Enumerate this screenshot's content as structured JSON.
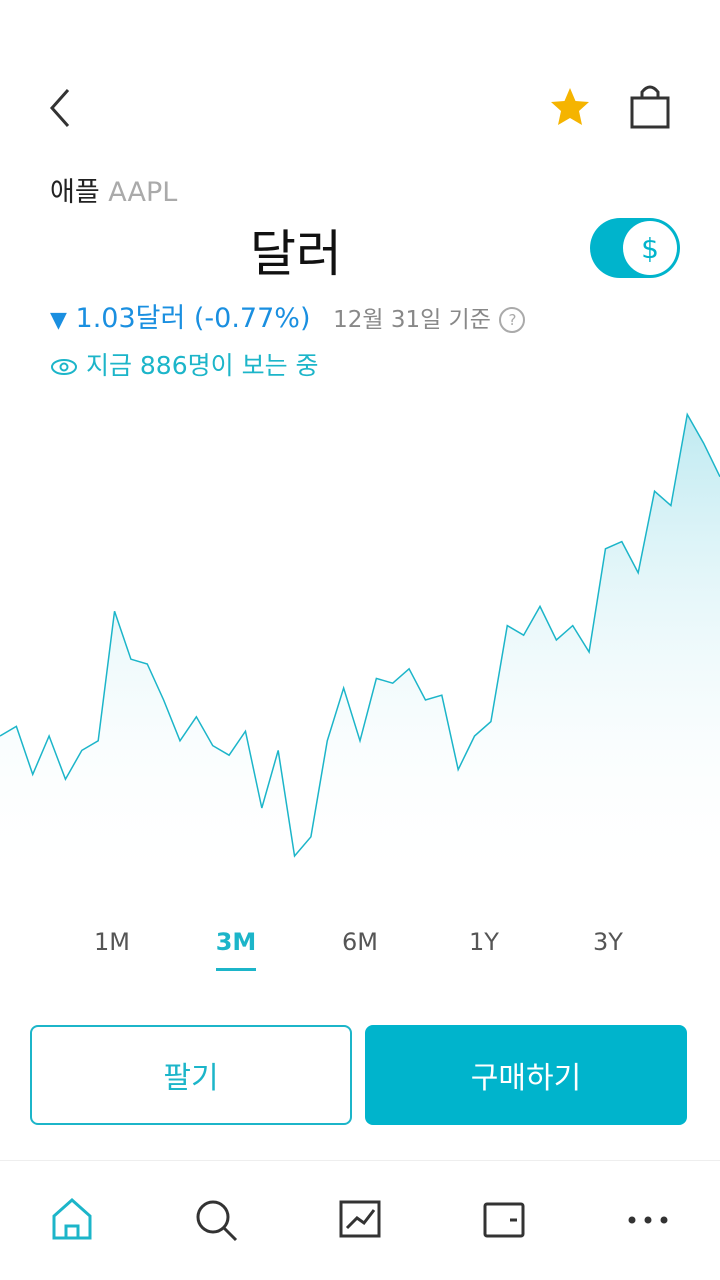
{
  "header": {
    "name": "애플",
    "ticker": "AAPL",
    "price_unit": "달러",
    "currency_toggle": "$"
  },
  "change": {
    "text": "1.03달러 (-0.77%)",
    "date": "12월 31일 기준",
    "help": "?"
  },
  "viewers": "지금 886명이 보는 중",
  "chart_data": {
    "type": "area",
    "color": "#1cb5c9",
    "values": [
      30,
      32,
      22,
      30,
      21,
      27,
      29,
      56,
      46,
      45,
      37.5,
      29,
      34,
      28,
      26,
      31,
      15,
      27,
      5,
      9,
      29,
      40,
      29,
      42,
      41,
      44,
      37.5,
      38.5,
      23,
      30,
      33,
      53,
      51,
      57,
      50,
      53,
      47.5,
      69,
      70.5,
      64,
      81,
      78,
      97,
      91,
      84
    ],
    "ylim": [
      0,
      100
    ]
  },
  "periods": {
    "items": [
      "1M",
      "3M",
      "6M",
      "1Y",
      "3Y"
    ],
    "selected": 1
  },
  "buttons": {
    "sell": "팔기",
    "buy": "구매하기"
  }
}
